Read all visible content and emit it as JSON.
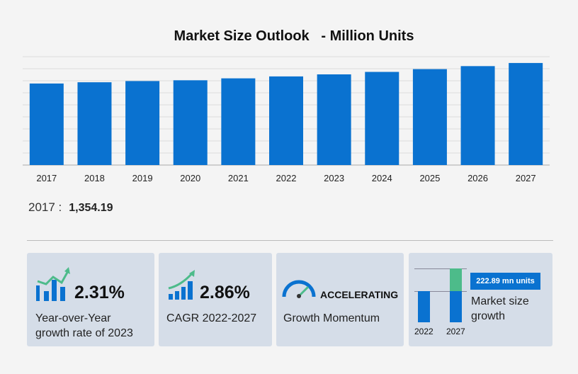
{
  "chart_data": {
    "type": "bar",
    "title": "Market Size Outlook   - Million Units",
    "categories": [
      "2017",
      "2018",
      "2019",
      "2020",
      "2021",
      "2022",
      "2023",
      "2024",
      "2025",
      "2026",
      "2027"
    ],
    "values": [
      1354.19,
      1375,
      1395,
      1408,
      1440,
      1472,
      1506,
      1547,
      1593,
      1643,
      1695
    ],
    "ylim": [
      0,
      1800
    ],
    "grid": true,
    "bar_color": "#0a72d0"
  },
  "callout": {
    "year": "2017 :",
    "value": "1,354.19"
  },
  "cards": [
    {
      "value": "2.31%",
      "label1": "Year-over-Year",
      "label2": "growth rate of 2023",
      "icon": "bar-chart-trend-icon"
    },
    {
      "value": "2.86%",
      "label": "CAGR  2022-2027",
      "icon": "growth-bars-arrow-icon"
    },
    {
      "value": "ACCELERATING",
      "label": "Growth Momentum",
      "icon": "speedometer-icon"
    },
    {
      "badge": "222.89 mn units",
      "label1": "Market size",
      "label2": "growth",
      "year_start": "2022",
      "year_end": "2027",
      "increment_color": "#4dbb8a"
    }
  ]
}
